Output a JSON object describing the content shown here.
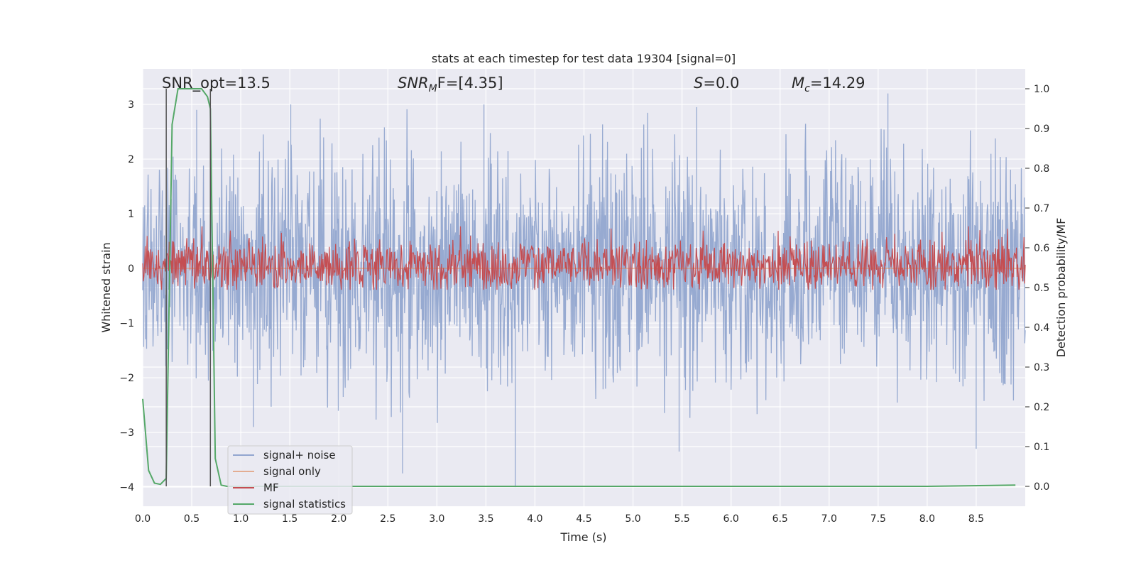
{
  "colors": {
    "background": "#eaeaf2",
    "grid": "#ffffff",
    "noise": "#92a6cf",
    "signal_only": "#dd8452",
    "mf": "#c44e52",
    "stats": "#55a868",
    "marker": "#555555"
  },
  "chart_data": {
    "type": "line",
    "title": "stats at each timestep for test data 19304 [signal=0]",
    "xlabel": "Time (s)",
    "ylabel": "Whitened strain",
    "y2label": "Detection probability/MF",
    "xlim": [
      0,
      9.0
    ],
    "ylim": [
      -4.35,
      3.65
    ],
    "y2lim": [
      -0.05,
      1.05
    ],
    "xticks": [
      0.0,
      0.5,
      1.0,
      1.5,
      2.0,
      2.5,
      3.0,
      3.5,
      4.0,
      4.5,
      5.0,
      5.5,
      6.0,
      6.5,
      7.0,
      7.5,
      8.0,
      8.5
    ],
    "xtick_labels": [
      "0.0",
      "0.5",
      "1.0",
      "1.5",
      "2.0",
      "2.5",
      "3.0",
      "3.5",
      "4.0",
      "4.5",
      "5.0",
      "5.5",
      "6.0",
      "6.5",
      "7.0",
      "7.5",
      "8.0",
      "8.5"
    ],
    "yticks": [
      -4,
      -3,
      -2,
      -1,
      0,
      1,
      2,
      3
    ],
    "ytick_labels": [
      "−4",
      "−3",
      "−2",
      "−1",
      "0",
      "1",
      "2",
      "3"
    ],
    "y2ticks": [
      0.0,
      0.1,
      0.2,
      0.3,
      0.4,
      0.5,
      0.6,
      0.7,
      0.8,
      0.9,
      1.0
    ],
    "y2tick_labels": [
      "0.0",
      "0.1",
      "0.2",
      "0.3",
      "0.4",
      "0.5",
      "0.6",
      "0.7",
      "0.8",
      "0.9",
      "1.0"
    ],
    "grid": true,
    "legend_position": "lower-left",
    "annotations": {
      "snr_opt": "SNR_opt=13.5",
      "snr_mf_prefix": "SNR",
      "snr_mf_sub": "M",
      "snr_mf_suffix": "F=[4.35]",
      "s_prefix": "S",
      "s_suffix": "=0.0",
      "mc_prefix": "M",
      "mc_sub": "c",
      "mc_suffix": "=14.29"
    },
    "vertical_markers": [
      0.24,
      0.69
    ],
    "series": [
      {
        "name": "signal+ noise",
        "axis": "left",
        "kind": "noise",
        "x_range": [
          0,
          9.0
        ],
        "envelope_upper": [
          1.9,
          2.1,
          2.2,
          2.3,
          2.4,
          2.6,
          2.5,
          2.3,
          2.4,
          2.2,
          2.3,
          2.5,
          2.4,
          2.2,
          2.3,
          2.4,
          2.2,
          2.3,
          2.5,
          2.3
        ],
        "envelope_lower": [
          -2.0,
          -2.1,
          -2.2,
          -2.2,
          -2.3,
          -2.4,
          -2.6,
          -2.3,
          -2.4,
          -2.2,
          -2.5,
          -2.3,
          -2.4,
          -2.5,
          -2.2,
          -2.3,
          -2.4,
          -2.5,
          -2.4,
          -2.3
        ],
        "peaks": [
          [
            1.51,
            3.0
          ],
          [
            3.48,
            3.0
          ],
          [
            7.6,
            3.2
          ],
          [
            5.65,
            2.95
          ],
          [
            0.55,
            2.9
          ],
          [
            2.65,
            -3.75
          ],
          [
            3.8,
            -4.0
          ],
          [
            5.47,
            -3.35
          ],
          [
            8.5,
            -3.3
          ],
          [
            1.13,
            -2.9
          ]
        ]
      },
      {
        "name": "signal only",
        "axis": "left",
        "kind": "flat",
        "value": 0.0
      },
      {
        "name": "MF",
        "axis": "right",
        "kind": "band",
        "x_range": [
          0,
          9.0
        ],
        "base": 0.555,
        "spread": 0.11
      },
      {
        "name": "signal statistics",
        "axis": "right",
        "kind": "line",
        "x": [
          0.0,
          0.06,
          0.12,
          0.18,
          0.24,
          0.3,
          0.36,
          0.42,
          0.5,
          0.6,
          0.66,
          0.69,
          0.74,
          0.8,
          0.86,
          0.9,
          2.0,
          4.0,
          6.0,
          8.0,
          8.9
        ],
        "y": [
          0.22,
          0.04,
          0.008,
          0.005,
          0.02,
          0.91,
          1.0,
          1.0,
          1.0,
          1.0,
          0.98,
          0.95,
          0.07,
          0.003,
          0.0,
          0.0,
          0.0,
          0.0,
          0.0,
          0.0,
          0.003
        ]
      }
    ]
  }
}
